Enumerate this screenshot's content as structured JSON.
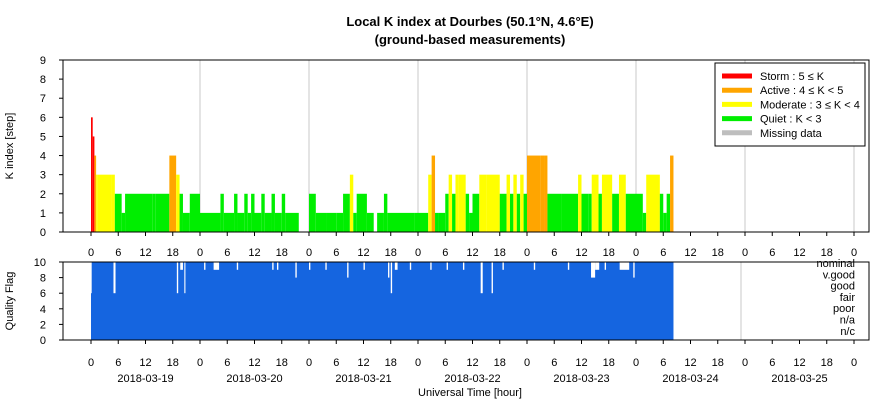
{
  "chart_data": [
    {
      "type": "bar",
      "title": "Local K index at Dourbes (50.1°N, 4.6°E)",
      "subtitle": "(ground-based measurements)",
      "ylabel": "K index [step]",
      "ylim": [
        0,
        9
      ],
      "yticks": [
        "0",
        "1",
        "2",
        "3",
        "4",
        "5",
        "6",
        "7",
        "8",
        "9"
      ],
      "x_days": 7.5,
      "x_hour_ticks": [
        "0",
        "6",
        "12",
        "18",
        "0",
        "6",
        "12",
        "18",
        "0",
        "6",
        "12",
        "18",
        "0",
        "6",
        "12",
        "18",
        "0",
        "6",
        "12",
        "18",
        "0",
        "6",
        "12",
        "18",
        "0",
        "6",
        "12",
        "18",
        "0"
      ],
      "grid": true,
      "legend_position": "top-right",
      "legend": [
        {
          "label": "Storm : 5 ≤ K",
          "color": "#ff0000"
        },
        {
          "label": "Active : 4 ≤ K < 5",
          "color": "#ffa500"
        },
        {
          "label": "Moderate : 3 ≤ K < 4",
          "color": "#ffff00"
        },
        {
          "label": "Quiet : K < 3",
          "color": "#00ee00"
        },
        {
          "label": "Missing data",
          "color": "#bebebe"
        }
      ],
      "bars": [
        {
          "x": 0.0,
          "w": 0.125,
          "k": 6
        },
        {
          "x": 0.125,
          "w": 0.125,
          "k": 5
        },
        {
          "x": 0.25,
          "w": 0.125,
          "k": 4
        },
        {
          "x": 0.375,
          "w": 0.125,
          "k": 3
        },
        {
          "x": 0.5,
          "w": 1.0,
          "k": 3
        },
        {
          "x": 1.5,
          "w": 0.25,
          "k": 3
        },
        {
          "x": 1.75,
          "w": 0.5,
          "k": 2
        },
        {
          "x": 2.25,
          "w": 0.25,
          "k": 1
        },
        {
          "x": 2.5,
          "w": 2.0,
          "k": 2
        },
        {
          "x": 4.5,
          "w": 0.25,
          "k": 2
        },
        {
          "x": 4.75,
          "w": 1.0,
          "k": 2
        },
        {
          "x": 5.75,
          "w": 0.5,
          "k": 4
        },
        {
          "x": 6.25,
          "w": 0.25,
          "k": 3
        },
        {
          "x": 6.5,
          "w": 0.25,
          "k": 2
        },
        {
          "x": 6.75,
          "w": 0.5,
          "k": 1
        },
        {
          "x": 7.25,
          "w": 0.75,
          "k": 2
        },
        {
          "x": 8.0,
          "w": 1.5,
          "k": 1
        },
        {
          "x": 9.5,
          "w": 0.25,
          "k": 2
        },
        {
          "x": 9.75,
          "w": 0.75,
          "k": 1
        },
        {
          "x": 10.5,
          "w": 0.25,
          "k": 2
        },
        {
          "x": 10.75,
          "w": 0.5,
          "k": 1
        },
        {
          "x": 11.25,
          "w": 0.25,
          "k": 2
        },
        {
          "x": 11.5,
          "w": 0.25,
          "k": 1
        },
        {
          "x": 11.75,
          "w": 0.25,
          "k": 2
        },
        {
          "x": 12.0,
          "w": 0.5,
          "k": 1
        },
        {
          "x": 12.5,
          "w": 0.25,
          "k": 2
        },
        {
          "x": 12.75,
          "w": 0.5,
          "k": 1
        },
        {
          "x": 13.25,
          "w": 0.25,
          "k": 2
        },
        {
          "x": 13.5,
          "w": 0.5,
          "k": 1
        },
        {
          "x": 14.0,
          "w": 0.25,
          "k": 2
        },
        {
          "x": 14.25,
          "w": 1.0,
          "k": 1
        },
        {
          "x": 15.25,
          "w": 0.75,
          "k": 0
        },
        {
          "x": 16.0,
          "w": 0.5,
          "k": 2
        },
        {
          "x": 16.5,
          "w": 0.75,
          "k": 1
        },
        {
          "x": 17.25,
          "w": 0.75,
          "k": 1
        },
        {
          "x": 18.0,
          "w": 0.5,
          "k": 1
        },
        {
          "x": 18.5,
          "w": 0.5,
          "k": 2
        },
        {
          "x": 19.0,
          "w": 0.25,
          "k": 3
        },
        {
          "x": 19.25,
          "w": 0.25,
          "k": 1
        },
        {
          "x": 19.5,
          "w": 0.75,
          "k": 2
        },
        {
          "x": 20.25,
          "w": 0.5,
          "k": 1
        },
        {
          "x": 20.75,
          "w": 0.25,
          "k": 0
        },
        {
          "x": 21.0,
          "w": 0.5,
          "k": 1
        },
        {
          "x": 21.5,
          "w": 0.25,
          "k": 2
        },
        {
          "x": 21.75,
          "w": 2.0,
          "k": 1
        },
        {
          "x": 23.75,
          "w": 1.0,
          "k": 1
        },
        {
          "x": 24.75,
          "w": 0.25,
          "k": 3
        },
        {
          "x": 25.0,
          "w": 0.25,
          "k": 4
        },
        {
          "x": 25.25,
          "w": 0.25,
          "k": 1
        },
        {
          "x": 25.5,
          "w": 0.5,
          "k": 1
        },
        {
          "x": 26.0,
          "w": 0.25,
          "k": 2
        },
        {
          "x": 26.25,
          "w": 0.25,
          "k": 3
        },
        {
          "x": 26.5,
          "w": 0.25,
          "k": 2
        },
        {
          "x": 26.75,
          "w": 0.25,
          "k": 3
        },
        {
          "x": 27.0,
          "w": 0.5,
          "k": 3
        },
        {
          "x": 27.5,
          "w": 0.25,
          "k": 2
        },
        {
          "x": 27.75,
          "w": 0.25,
          "k": 1
        },
        {
          "x": 28.0,
          "w": 0.5,
          "k": 2
        },
        {
          "x": 28.5,
          "w": 0.5,
          "k": 3
        },
        {
          "x": 29.0,
          "w": 1.0,
          "k": 3
        },
        {
          "x": 30.0,
          "w": 0.5,
          "k": 2
        },
        {
          "x": 30.5,
          "w": 0.25,
          "k": 3
        },
        {
          "x": 30.75,
          "w": 0.25,
          "k": 2
        },
        {
          "x": 31.0,
          "w": 0.25,
          "k": 3
        },
        {
          "x": 31.25,
          "w": 0.25,
          "k": 2
        },
        {
          "x": 31.5,
          "w": 0.25,
          "k": 3
        },
        {
          "x": 31.75,
          "w": 0.25,
          "k": 2
        },
        {
          "x": 32.0,
          "w": 1.0,
          "k": 4
        },
        {
          "x": 33.0,
          "w": 0.25,
          "k": 4
        },
        {
          "x": 33.25,
          "w": 0.25,
          "k": 4
        },
        {
          "x": 33.5,
          "w": 1.0,
          "k": 2
        },
        {
          "x": 34.5,
          "w": 1.25,
          "k": 2
        },
        {
          "x": 35.75,
          "w": 0.25,
          "k": 3
        },
        {
          "x": 36.0,
          "w": 0.5,
          "k": 2
        },
        {
          "x": 36.5,
          "w": 0.25,
          "k": 2
        },
        {
          "x": 36.75,
          "w": 0.5,
          "k": 3
        },
        {
          "x": 37.25,
          "w": 0.25,
          "k": 2
        },
        {
          "x": 37.5,
          "w": 0.75,
          "k": 3
        },
        {
          "x": 38.25,
          "w": 0.5,
          "k": 2
        },
        {
          "x": 38.75,
          "w": 0.5,
          "k": 3
        },
        {
          "x": 39.25,
          "w": 0.75,
          "k": 2
        },
        {
          "x": 40.0,
          "w": 0.5,
          "k": 2
        },
        {
          "x": 40.5,
          "w": 0.25,
          "k": 1
        },
        {
          "x": 40.75,
          "w": 1.0,
          "k": 3
        },
        {
          "x": 41.75,
          "w": 0.25,
          "k": 2
        },
        {
          "x": 42.0,
          "w": 0.25,
          "k": 1
        },
        {
          "x": 42.25,
          "w": 0.25,
          "k": 2
        },
        {
          "x": 42.5,
          "w": 0.25,
          "k": 4
        }
      ]
    },
    {
      "type": "bar",
      "ylabel": "Quality Flag",
      "ylim": [
        0,
        10
      ],
      "yticks": [
        "0",
        "2",
        "4",
        "6",
        "8",
        "10"
      ],
      "x_hour_ticks": [
        "0",
        "6",
        "12",
        "18",
        "0",
        "6",
        "12",
        "18",
        "0",
        "6",
        "12",
        "18",
        "0",
        "6",
        "12",
        "18",
        "0",
        "6",
        "12",
        "18",
        "0",
        "6",
        "12",
        "18",
        "0",
        "6",
        "12",
        "18",
        "0"
      ],
      "date_labels": [
        "2018-03-19",
        "2018-03-20",
        "2018-03-21",
        "2018-03-22",
        "2018-03-23",
        "2018-03-24",
        "2018-03-25"
      ],
      "xlabel": "Universal Time [hour]",
      "flag_labels": [
        "nominal",
        "v.good",
        "good",
        "fair",
        "poor",
        "n/a",
        "n/c"
      ],
      "bar_color": "#1565e0",
      "quality": [
        {
          "x": 0.0,
          "w": 0.05,
          "q": 6
        },
        {
          "x": 1.65,
          "w": 0.15,
          "q": 6
        },
        {
          "x": 6.3,
          "w": 0.1,
          "q": 6
        },
        {
          "x": 6.55,
          "w": 0.2,
          "q": 9
        },
        {
          "x": 6.85,
          "w": 0.08,
          "q": 6
        },
        {
          "x": 8.3,
          "w": 0.1,
          "q": 9
        },
        {
          "x": 9.0,
          "w": 0.4,
          "q": 9
        },
        {
          "x": 10.7,
          "w": 0.1,
          "q": 9
        },
        {
          "x": 13.3,
          "w": 0.1,
          "q": 9
        },
        {
          "x": 13.65,
          "w": 0.1,
          "q": 9
        },
        {
          "x": 15.0,
          "w": 0.1,
          "q": 8
        },
        {
          "x": 16.0,
          "w": 0.1,
          "q": 9
        },
        {
          "x": 17.2,
          "w": 0.1,
          "q": 9
        },
        {
          "x": 18.8,
          "w": 0.1,
          "q": 8
        },
        {
          "x": 20.0,
          "w": 0.1,
          "q": 9
        },
        {
          "x": 21.8,
          "w": 0.1,
          "q": 8
        },
        {
          "x": 22.0,
          "w": 0.1,
          "q": 6
        },
        {
          "x": 22.3,
          "w": 0.2,
          "q": 9
        },
        {
          "x": 23.4,
          "w": 0.1,
          "q": 9
        },
        {
          "x": 24.9,
          "w": 0.1,
          "q": 9
        },
        {
          "x": 26.1,
          "w": 0.1,
          "q": 9
        },
        {
          "x": 27.3,
          "w": 0.1,
          "q": 9
        },
        {
          "x": 28.6,
          "w": 0.15,
          "q": 6
        },
        {
          "x": 29.4,
          "w": 0.1,
          "q": 6
        },
        {
          "x": 30.2,
          "w": 0.1,
          "q": 9
        },
        {
          "x": 32.5,
          "w": 0.1,
          "q": 9
        },
        {
          "x": 35.0,
          "w": 0.1,
          "q": 9
        },
        {
          "x": 36.7,
          "w": 0.3,
          "q": 8
        },
        {
          "x": 37.0,
          "w": 0.3,
          "q": 9
        },
        {
          "x": 37.7,
          "w": 0.1,
          "q": 9
        },
        {
          "x": 38.8,
          "w": 0.7,
          "q": 9
        },
        {
          "x": 39.8,
          "w": 0.1,
          "q": 8
        }
      ]
    }
  ]
}
